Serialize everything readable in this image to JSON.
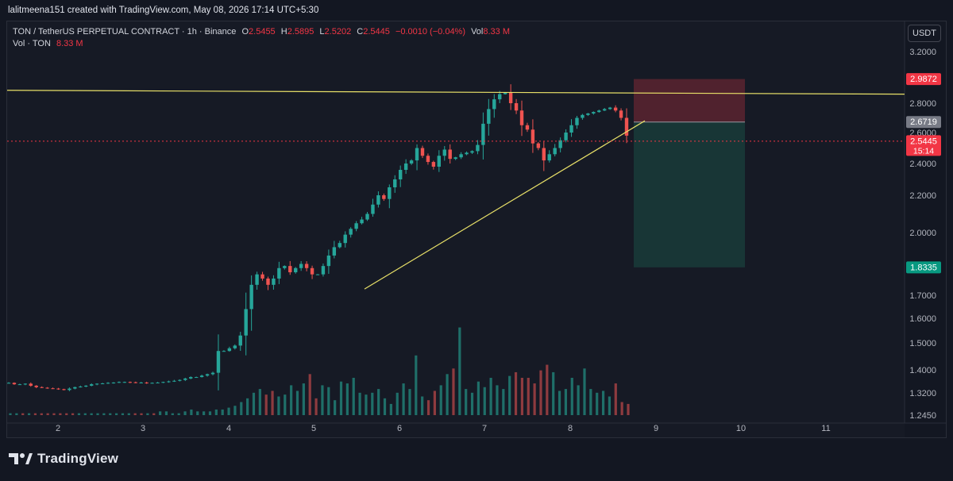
{
  "creator_line": "lalitmeena151 created with TradingView.com, May 08, 2026 17:14 UTC+5:30",
  "legend": {
    "symbol": "TON / TetherUS PERPETUAL CONTRACT · 1h · Binance",
    "open_label": "O",
    "open": "2.5455",
    "high_label": "H",
    "high": "2.5895",
    "low_label": "L",
    "low": "2.5202",
    "close_label": "C",
    "close": "2.5445",
    "change": "−0.0010 (−0.04%)",
    "vol_label": "Vol",
    "vol": "8.33 M",
    "vol_study_label": "Vol · TON",
    "vol_study_value": "8.33 M"
  },
  "currency_button": "USDT",
  "branding": "TradingView",
  "colors": {
    "background": "#161a25",
    "up": "#26a69a",
    "down": "#ef5350",
    "resistance_line": "#e8e068",
    "trend_line": "#e8e068",
    "stop_zone": "#5a2430",
    "target_zone": "#183a38",
    "tag_red": "#f23645",
    "tag_green": "#089981",
    "tag_gray": "#787b86"
  },
  "chart_data": {
    "type": "candlestick",
    "x_tick_labels": [
      "2",
      "3",
      "4",
      "5",
      "6",
      "7",
      "8",
      "9",
      "10",
      "11"
    ],
    "y_tick_labels": [
      "3.2000",
      "2.8000",
      "2.6000",
      "2.4000",
      "2.2000",
      "2.0000",
      "1.7000",
      "1.6000",
      "1.5000",
      "1.4000",
      "1.3200",
      "1.2450"
    ],
    "price_tags": [
      {
        "label": "2.9872",
        "kind": "stop"
      },
      {
        "label": "2.6719",
        "kind": "entry"
      },
      {
        "label": "2.5445",
        "sublabel": "15:14",
        "kind": "current"
      },
      {
        "label": "1.8335",
        "kind": "target"
      }
    ],
    "current_price": 2.5445,
    "position": {
      "entry": 2.6719,
      "stop": 2.9872,
      "target": 1.8335,
      "side": "short"
    },
    "drawings": [
      {
        "type": "horizontal-resistance",
        "from": 2.9,
        "to": 2.87
      },
      {
        "type": "ascending-trendline",
        "from": 1.73,
        "to": 2.68
      }
    ],
    "price_path": [
      1.355,
      1.355,
      1.35,
      1.35,
      1.352,
      1.345,
      1.34,
      1.338,
      1.336,
      1.335,
      1.333,
      1.33,
      1.335,
      1.34,
      1.342,
      1.345,
      1.35,
      1.352,
      1.353,
      1.355,
      1.356,
      1.358,
      1.358,
      1.357,
      1.355,
      1.356,
      1.354,
      1.355,
      1.356,
      1.358,
      1.36,
      1.362,
      1.365,
      1.37,
      1.375,
      1.375,
      1.38,
      1.385,
      1.39,
      1.47,
      1.47,
      1.48,
      1.49,
      1.53,
      1.64,
      1.75,
      1.8,
      1.78,
      1.75,
      1.78,
      1.83,
      1.84,
      1.81,
      1.83,
      1.85,
      1.83,
      1.8,
      1.8,
      1.84,
      1.89,
      1.93,
      1.95,
      1.99,
      2.02,
      2.05,
      2.07,
      2.1,
      2.15,
      2.2,
      2.18,
      2.25,
      2.3,
      2.36,
      2.4,
      2.42,
      2.5,
      2.45,
      2.41,
      2.38,
      2.45,
      2.49,
      2.43,
      2.44,
      2.46,
      2.47,
      2.48,
      2.52,
      2.66,
      2.76,
      2.83,
      2.87,
      2.88,
      2.8,
      2.75,
      2.65,
      2.62,
      2.53,
      2.5,
      2.42,
      2.46,
      2.5,
      2.55,
      2.6,
      2.65,
      2.7,
      2.72,
      2.73,
      2.74,
      2.75,
      2.76,
      2.77,
      2.75,
      2.7,
      2.58
    ],
    "volume_relative": [
      1,
      1,
      1,
      1,
      1,
      1,
      1,
      1,
      1,
      1,
      1,
      1,
      1,
      1,
      1,
      1,
      1,
      1,
      1,
      1,
      1,
      1,
      1,
      1,
      2,
      2,
      1,
      1,
      2,
      3,
      2,
      2,
      2,
      3,
      3,
      4,
      5,
      7,
      9,
      12,
      14,
      11,
      13,
      10,
      11,
      16,
      13,
      17,
      22,
      9,
      16,
      15,
      8,
      18,
      17,
      20,
      12,
      11,
      12,
      14,
      9,
      6,
      12,
      17,
      14,
      32,
      10,
      8,
      13,
      16,
      22,
      25,
      47,
      14,
      12,
      18,
      15,
      20,
      16,
      14,
      21,
      23,
      20,
      20,
      17,
      24,
      27,
      23,
      13,
      14,
      20,
      16,
      25,
      14,
      12,
      13,
      10,
      17,
      7,
      6
    ]
  }
}
